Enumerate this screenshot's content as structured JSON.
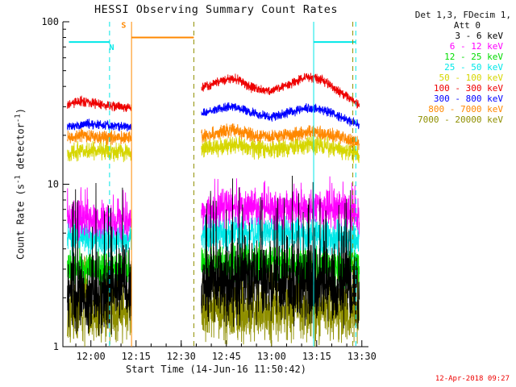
{
  "chart_data": {
    "type": "line",
    "title": "HESSI Observing Summary Count Rates",
    "xlabel": "Start Time (14-Jun-16 11:50:42)",
    "ylabel": "Count Rate (s-1 detector-1)",
    "xlim": [
      0,
      101.5
    ],
    "ylim": [
      1,
      100
    ],
    "y_scale": "log",
    "y_ticks": [
      1,
      10,
      100
    ],
    "x_minor_step": 5,
    "x_ticks": [
      {
        "t": 9.3,
        "label": "12:00"
      },
      {
        "t": 24.3,
        "label": "12:15"
      },
      {
        "t": 39.3,
        "label": "12:30"
      },
      {
        "t": 54.3,
        "label": "12:45"
      },
      {
        "t": 69.3,
        "label": "13:00"
      },
      {
        "t": 84.3,
        "label": "13:15"
      },
      {
        "t": 99.3,
        "label": "13:30"
      }
    ],
    "dt": 0.06,
    "data_segments": [
      [
        1.5,
        22.8
      ],
      [
        46,
        98.5
      ]
    ],
    "draw_order": [
      8,
      2,
      3,
      1,
      0,
      4,
      7,
      6,
      5
    ],
    "series": [
      {
        "label": "3 - 6 keV",
        "color": "#000000",
        "noise": 0.3,
        "spike_p": 0.05,
        "spike_base": 0.3,
        "spike_mag": 0.38,
        "trend": [
          [
            0,
            2.1
          ],
          [
            22.8,
            2.2
          ],
          [
            46,
            2.4
          ],
          [
            70,
            2.6
          ],
          [
            85,
            2.5
          ],
          [
            101.5,
            2.2
          ]
        ]
      },
      {
        "label": "6 - 12 keV",
        "color": "#ff00ff",
        "noise": 0.135,
        "spike_p": 0.03,
        "spike_base": 0.1,
        "spike_mag": 0.1,
        "trend": [
          [
            0,
            6.1
          ],
          [
            22.8,
            6.0
          ],
          [
            46,
            6.8
          ],
          [
            60,
            7.2
          ],
          [
            75,
            6.9
          ],
          [
            88,
            7.2
          ],
          [
            101.5,
            6.3
          ]
        ]
      },
      {
        "label": "12 - 25 keV",
        "color": "#00dd00",
        "noise": 0.14,
        "spike_p": 0,
        "spike_base": 0,
        "spike_mag": 0,
        "trend": [
          [
            0,
            3.0
          ],
          [
            22.8,
            3.0
          ],
          [
            46,
            3.2
          ],
          [
            70,
            3.3
          ],
          [
            101.5,
            2.9
          ]
        ]
      },
      {
        "label": "25 - 50 keV",
        "color": "#00e8e8",
        "noise": 0.13,
        "spike_p": 0,
        "spike_base": 0,
        "spike_mag": 0,
        "trend": [
          [
            0,
            4.8
          ],
          [
            22.8,
            4.7
          ],
          [
            46,
            5.0
          ],
          [
            70,
            5.1
          ],
          [
            101.5,
            4.5
          ]
        ]
      },
      {
        "label": "50 - 100 keV",
        "color": "#d6d600",
        "noise": 0.07,
        "spike_p": 0,
        "spike_base": 0,
        "spike_mag": 0,
        "trend": [
          [
            0,
            15.5
          ],
          [
            10,
            16.2
          ],
          [
            22.8,
            15.6
          ],
          [
            46,
            16.8
          ],
          [
            58,
            17.3
          ],
          [
            66,
            16.2
          ],
          [
            76,
            17.0
          ],
          [
            84,
            17.6
          ],
          [
            92,
            16.3
          ],
          [
            101.5,
            14.8
          ]
        ]
      },
      {
        "label": "100 - 300 keV",
        "color": "#ee0000",
        "noise": 0.035,
        "spike_p": 0,
        "spike_base": 0,
        "spike_mag": 0,
        "trend": [
          [
            0,
            30
          ],
          [
            6,
            32.5
          ],
          [
            12,
            31
          ],
          [
            18,
            30
          ],
          [
            22.8,
            30
          ],
          [
            46,
            39
          ],
          [
            52,
            43
          ],
          [
            57,
            45
          ],
          [
            63,
            39
          ],
          [
            69,
            37.5
          ],
          [
            75,
            41
          ],
          [
            81,
            45.5
          ],
          [
            86,
            44
          ],
          [
            92,
            37
          ],
          [
            98,
            31
          ],
          [
            101.5,
            30
          ]
        ]
      },
      {
        "label": "300 - 800 keV",
        "color": "#0000ff",
        "noise": 0.035,
        "spike_p": 0,
        "spike_base": 0,
        "spike_mag": 0,
        "trend": [
          [
            0,
            22.5
          ],
          [
            8,
            23.5
          ],
          [
            22.8,
            22.5
          ],
          [
            46,
            27
          ],
          [
            52,
            29
          ],
          [
            57,
            30
          ],
          [
            63,
            27.5
          ],
          [
            69,
            26
          ],
          [
            75,
            27.5
          ],
          [
            81,
            29.5
          ],
          [
            86,
            29
          ],
          [
            92,
            26
          ],
          [
            98,
            23.5
          ],
          [
            101.5,
            23
          ]
        ]
      },
      {
        "label": "800 - 7000 keV",
        "color": "#ff8800",
        "noise": 0.05,
        "spike_p": 0,
        "spike_base": 0,
        "spike_mag": 0,
        "trend": [
          [
            0,
            19
          ],
          [
            5,
            20
          ],
          [
            12,
            19.5
          ],
          [
            22.8,
            19
          ],
          [
            46,
            20
          ],
          [
            57,
            21.5
          ],
          [
            63,
            20
          ],
          [
            70,
            19.5
          ],
          [
            78,
            20.5
          ],
          [
            84,
            21
          ],
          [
            92,
            19.5
          ],
          [
            98,
            18
          ],
          [
            101.5,
            17.5
          ]
        ]
      },
      {
        "label": "7000 - 20000 keV",
        "color": "#8f8f00",
        "noise": 0.23,
        "spike_p": 0.04,
        "spike_base": 0.2,
        "spike_mag": 0.15,
        "trend": [
          [
            0,
            1.65
          ],
          [
            22.8,
            1.6
          ],
          [
            46,
            1.7
          ],
          [
            101.5,
            1.6
          ]
        ]
      }
    ],
    "flags": [
      {
        "type": "hline",
        "color": "#00e8e8",
        "y": 75,
        "t0": 2,
        "t1": 15.5
      },
      {
        "type": "vline",
        "color": "#00e8e8",
        "t": 15.5,
        "dash": true
      },
      {
        "type": "text",
        "color": "#00e8e8",
        "t": 16.2,
        "y": 67,
        "text": "N"
      },
      {
        "type": "text",
        "color": "#ff8800",
        "t": 20.2,
        "y": 92,
        "text": "S"
      },
      {
        "type": "vline",
        "color": "#ff8800",
        "t": 22.8,
        "dash": false
      },
      {
        "type": "hline",
        "color": "#ff8800",
        "y": 80,
        "t0": 22.8,
        "t1": 43.5
      },
      {
        "type": "vline",
        "color": "#8f8f00",
        "t": 43.5,
        "dash": true
      },
      {
        "type": "vline",
        "color": "#00e8e8",
        "t": 83.3,
        "dash": false
      },
      {
        "type": "hline",
        "color": "#00e8e8",
        "y": 75,
        "t0": 83.3,
        "t1": 97.3
      },
      {
        "type": "vline",
        "color": "#8f8f00",
        "t": 96.3,
        "dash": true
      },
      {
        "type": "vline",
        "color": "#00e8e8",
        "t": 97.3,
        "dash": true
      }
    ]
  },
  "labels": {
    "ylabel_parts": [
      "Count Rate (s",
      "-1",
      " detector",
      "-1",
      ")"
    ]
  },
  "legend": {
    "header1": "Det 1,3, FDecim 1,",
    "header2": "Att 0"
  },
  "footer": {
    "timestamp": "12-Apr-2018 09:27"
  }
}
